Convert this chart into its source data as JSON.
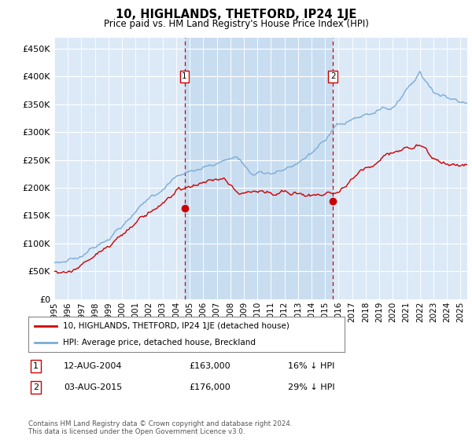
{
  "title": "10, HIGHLANDS, THETFORD, IP24 1JE",
  "subtitle": "Price paid vs. HM Land Registry's House Price Index (HPI)",
  "yticks": [
    0,
    50000,
    100000,
    150000,
    200000,
    250000,
    300000,
    350000,
    400000,
    450000
  ],
  "ytick_labels": [
    "£0",
    "£50K",
    "£100K",
    "£150K",
    "£200K",
    "£250K",
    "£300K",
    "£350K",
    "£400K",
    "£450K"
  ],
  "xmin_year": 1995.0,
  "xmax_year": 2025.5,
  "ymin": 0,
  "ymax": 470000,
  "bg_color": "#dce9f7",
  "shade_color": "#c8ddf0",
  "grid_color": "#ffffff",
  "hpi_color": "#7bacd4",
  "price_color": "#cc0000",
  "marker1_year": 2004.617,
  "marker1_value": 163000,
  "marker2_year": 2015.583,
  "marker2_value": 176000,
  "marker1_label": "1",
  "marker2_label": "2",
  "legend_line1": "10, HIGHLANDS, THETFORD, IP24 1JE (detached house)",
  "legend_line2": "HPI: Average price, detached house, Breckland",
  "table_row1": [
    "1",
    "12-AUG-2004",
    "£163,000",
    "16% ↓ HPI"
  ],
  "table_row2": [
    "2",
    "03-AUG-2015",
    "£176,000",
    "29% ↓ HPI"
  ],
  "footnote": "Contains HM Land Registry data © Crown copyright and database right 2024.\nThis data is licensed under the Open Government Licence v3.0.",
  "xtick_years": [
    1995,
    1996,
    1997,
    1998,
    1999,
    2000,
    2001,
    2002,
    2003,
    2004,
    2005,
    2006,
    2007,
    2008,
    2009,
    2010,
    2011,
    2012,
    2013,
    2014,
    2015,
    2016,
    2017,
    2018,
    2019,
    2020,
    2021,
    2022,
    2023,
    2024,
    2025
  ]
}
